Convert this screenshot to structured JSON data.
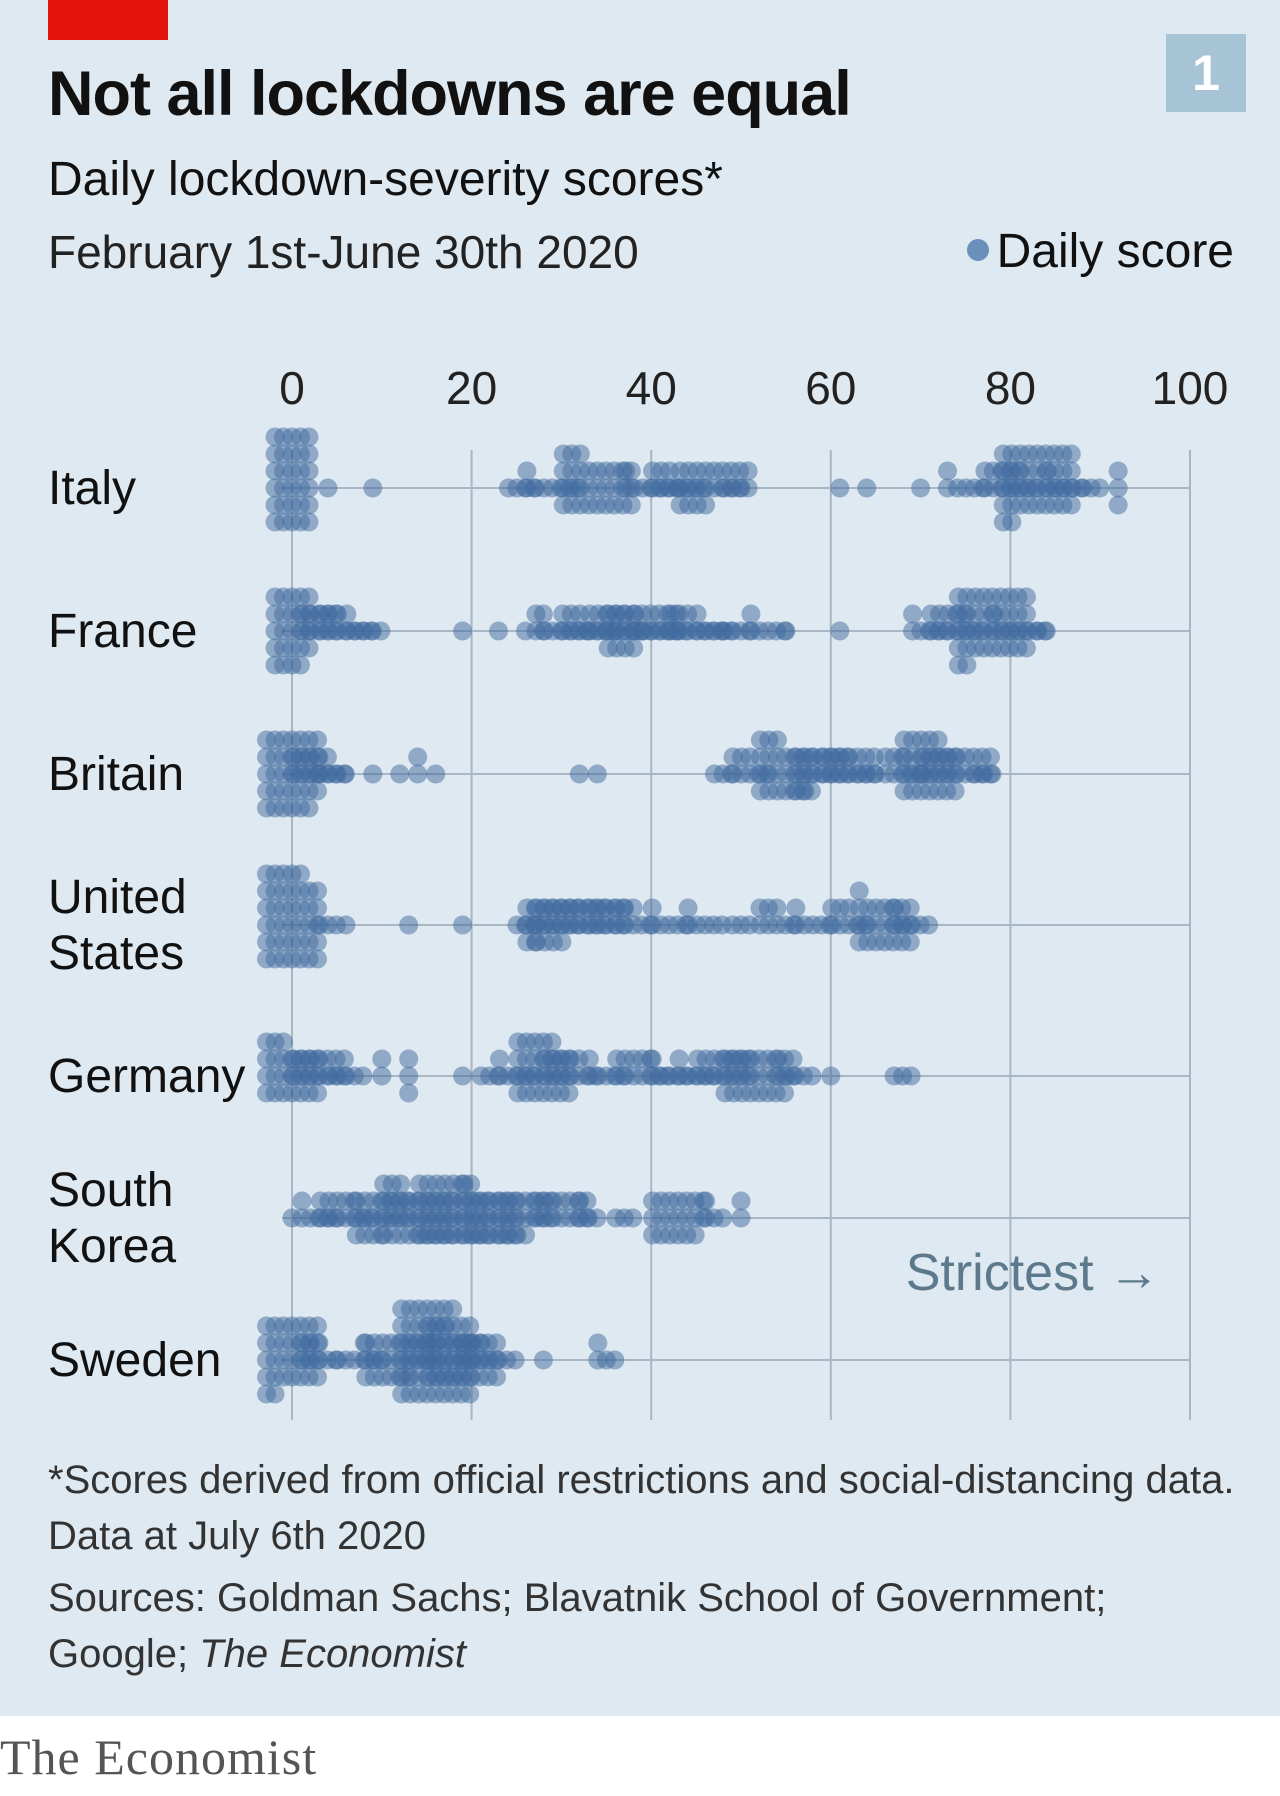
{
  "header": {
    "title": "Not all lockdowns are equal",
    "subtitle": "Daily lockdown-severity scores*",
    "date_range": "February 1st-June 30th 2020",
    "badge": "1",
    "legend_label": "Daily score"
  },
  "colors": {
    "background": "#dee9f1",
    "dot": "#3f6a9e",
    "gridline": "#a9b7c4",
    "accent_red": "#e3120b",
    "badge": "#a7c3d6",
    "annotation": "#5d7a8d"
  },
  "annotation": "Strictest →",
  "footnote": "*Scores derived from official restrictions and social-distancing data. Data at July 6th 2020",
  "sources": {
    "prefix": "Sources: Goldman Sachs; Blavatnik School of Government; Google; ",
    "italic": "The Economist"
  },
  "brand": "The Economist",
  "chart_data": {
    "type": "scatter",
    "subtype": "beeswarm",
    "xlim": [
      0,
      100
    ],
    "x_ticks": [
      0,
      20,
      40,
      60,
      80,
      100
    ],
    "grid": true,
    "legend_position": "top-right",
    "series": [
      {
        "label": "Italy",
        "clusters": [
          [
            0,
            2,
            30
          ],
          [
            4,
            0,
            1
          ],
          [
            9,
            0,
            1
          ],
          [
            26,
            2,
            4
          ],
          [
            29,
            3,
            8
          ],
          [
            34,
            4,
            30
          ],
          [
            40,
            3,
            8
          ],
          [
            43,
            3,
            10
          ],
          [
            47,
            4,
            22
          ],
          [
            50,
            2,
            3
          ],
          [
            61,
            0,
            1
          ],
          [
            64,
            0,
            1
          ],
          [
            70,
            0,
            1
          ],
          [
            73,
            0,
            2
          ],
          [
            76,
            2,
            4
          ],
          [
            80,
            3,
            12
          ],
          [
            83,
            4,
            38
          ],
          [
            86,
            2,
            6
          ],
          [
            89,
            1,
            3
          ],
          [
            92,
            0,
            3
          ]
        ]
      },
      {
        "label": "France",
        "clusters": [
          [
            0,
            2,
            24
          ],
          [
            3,
            2,
            10
          ],
          [
            6,
            3,
            10
          ],
          [
            8,
            2,
            6
          ],
          [
            19,
            0,
            1
          ],
          [
            23,
            0,
            1
          ],
          [
            26,
            0,
            1
          ],
          [
            28,
            0,
            2
          ],
          [
            30,
            3,
            8
          ],
          [
            33,
            3,
            10
          ],
          [
            36,
            3,
            12
          ],
          [
            39,
            4,
            22
          ],
          [
            41,
            3,
            8
          ],
          [
            45,
            3,
            10
          ],
          [
            47,
            2,
            6
          ],
          [
            50,
            2,
            4
          ],
          [
            53,
            2,
            6
          ],
          [
            55,
            0,
            1
          ],
          [
            61,
            0,
            1
          ],
          [
            71,
            2,
            6
          ],
          [
            74,
            3,
            12
          ],
          [
            78,
            4,
            38
          ],
          [
            81,
            3,
            8
          ],
          [
            84,
            1,
            2
          ]
        ]
      },
      {
        "label": "Britain",
        "clusters": [
          [
            0,
            3,
            34
          ],
          [
            3,
            3,
            12
          ],
          [
            5,
            2,
            4
          ],
          [
            9,
            0,
            1
          ],
          [
            12,
            0,
            1
          ],
          [
            14,
            0,
            2
          ],
          [
            16,
            0,
            1
          ],
          [
            32,
            0,
            1
          ],
          [
            34,
            0,
            1
          ],
          [
            48,
            1,
            3
          ],
          [
            51,
            2,
            8
          ],
          [
            55,
            3,
            24
          ],
          [
            59,
            3,
            16
          ],
          [
            62,
            3,
            14
          ],
          [
            64,
            1,
            3
          ],
          [
            68,
            2,
            8
          ],
          [
            71,
            3,
            26
          ],
          [
            74,
            4,
            18
          ],
          [
            77,
            1,
            3
          ]
        ]
      },
      {
        "label": "United States",
        "lines": [
          "United",
          "States"
        ],
        "clusters": [
          [
            0,
            3,
            40
          ],
          [
            4,
            1,
            3
          ],
          [
            6,
            0,
            1
          ],
          [
            13,
            0,
            1
          ],
          [
            19,
            0,
            1
          ],
          [
            26,
            1,
            3
          ],
          [
            29,
            3,
            16
          ],
          [
            31,
            4,
            22
          ],
          [
            35,
            2,
            10
          ],
          [
            38,
            2,
            8
          ],
          [
            42,
            2,
            6
          ],
          [
            46,
            2,
            6
          ],
          [
            50,
            1,
            3
          ],
          [
            54,
            2,
            8
          ],
          [
            58,
            2,
            6
          ],
          [
            62,
            2,
            8
          ],
          [
            66,
            3,
            22
          ],
          [
            69,
            2,
            6
          ]
        ]
      },
      {
        "label": "Germany",
        "clusters": [
          [
            0,
            3,
            24
          ],
          [
            3,
            3,
            14
          ],
          [
            6,
            2,
            5
          ],
          [
            10,
            0,
            2
          ],
          [
            13,
            0,
            3
          ],
          [
            19,
            0,
            1
          ],
          [
            22,
            1,
            3
          ],
          [
            25,
            2,
            6
          ],
          [
            28,
            3,
            26
          ],
          [
            31,
            3,
            12
          ],
          [
            35,
            2,
            6
          ],
          [
            39,
            3,
            12
          ],
          [
            42,
            2,
            6
          ],
          [
            45,
            2,
            6
          ],
          [
            48,
            3,
            14
          ],
          [
            52,
            4,
            26
          ],
          [
            56,
            2,
            6
          ],
          [
            60,
            0,
            1
          ],
          [
            68,
            1,
            3
          ]
        ]
      },
      {
        "label": "South Korea",
        "lines": [
          "South",
          "Korea"
        ],
        "clusters": [
          [
            0,
            0,
            1
          ],
          [
            3,
            2,
            6
          ],
          [
            6,
            3,
            12
          ],
          [
            10,
            3,
            18
          ],
          [
            14,
            4,
            30
          ],
          [
            18,
            4,
            34
          ],
          [
            22,
            3,
            22
          ],
          [
            26,
            3,
            18
          ],
          [
            30,
            3,
            14
          ],
          [
            33,
            1,
            4
          ],
          [
            37,
            1,
            3
          ],
          [
            43,
            3,
            20
          ],
          [
            47,
            1,
            4
          ],
          [
            50,
            0,
            2
          ]
        ]
      },
      {
        "label": "Sweden",
        "clusters": [
          [
            0,
            3,
            30
          ],
          [
            3,
            2,
            8
          ],
          [
            6,
            1,
            3
          ],
          [
            9,
            1,
            4
          ],
          [
            12,
            4,
            24
          ],
          [
            16,
            4,
            52
          ],
          [
            19,
            4,
            30
          ],
          [
            22,
            3,
            10
          ],
          [
            28,
            0,
            1
          ],
          [
            35,
            1,
            4
          ]
        ]
      }
    ]
  }
}
